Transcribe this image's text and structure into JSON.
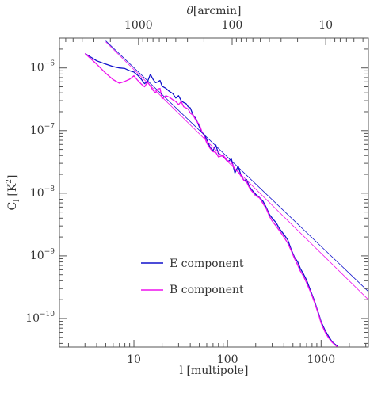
{
  "chart_data": {
    "type": "line",
    "xlabel": "l [multipole]",
    "ylabel_main": "C",
    "ylabel_sub": "l",
    "ylabel_unit_base": "[K",
    "ylabel_unit_exp": "2",
    "ylabel_unit_end": "]",
    "x2label_symbol": "θ",
    "x2label_text": "[arcmin]",
    "xscale": "log",
    "yscale": "log",
    "xlim": [
      1.6,
      3200
    ],
    "ylim": [
      3.5e-11,
      3e-06
    ],
    "x2scale": "log",
    "x2_ticks": [
      {
        "label": "1000",
        "l": 11.2
      },
      {
        "label": "100",
        "l": 112
      },
      {
        "label": "10",
        "l": 1120
      }
    ],
    "x_ticks": [
      {
        "label": "10",
        "value": 10
      },
      {
        "label": "100",
        "value": 100
      },
      {
        "label": "1000",
        "value": 1000
      }
    ],
    "y_ticks": [
      {
        "base": "10",
        "exp": "−6",
        "value": 1e-06
      },
      {
        "base": "10",
        "exp": "−7",
        "value": 1e-07
      },
      {
        "base": "10",
        "exp": "−8",
        "value": 1e-08
      },
      {
        "base": "10",
        "exp": "−9",
        "value": 1e-09
      },
      {
        "base": "10",
        "exp": "−10",
        "value": 1e-10
      }
    ],
    "legend": {
      "position": "lower-left",
      "items": [
        {
          "label": "E component",
          "color": "#1111cc"
        },
        {
          "label": "B component",
          "color": "#ee11ee"
        }
      ]
    },
    "series": [
      {
        "name": "E component",
        "color": "#1111cc",
        "x": [
          3,
          4,
          5,
          6,
          7,
          8,
          9,
          10,
          11,
          12,
          13,
          14,
          15,
          16,
          17,
          18,
          19,
          20,
          22,
          24,
          26,
          28,
          30,
          32,
          34,
          36,
          38,
          40,
          43,
          46,
          50,
          53,
          56,
          60,
          65,
          70,
          75,
          80,
          90,
          100,
          110,
          120,
          130,
          140,
          150,
          160,
          170,
          180,
          190,
          200,
          220,
          240,
          260,
          280,
          300,
          330,
          360,
          400,
          440,
          480,
          520,
          560,
          600,
          650,
          700,
          750,
          800,
          850,
          900,
          950,
          1000,
          1100,
          1200,
          1300,
          1400,
          1500
        ],
        "y": [
          1.7e-06,
          1.3e-06,
          1.15e-06,
          1.05e-06,
          1e-06,
          9.8e-07,
          9e-07,
          8.6e-07,
          7.6e-07,
          6.6e-07,
          5.6e-07,
          6.1e-07,
          7.9e-07,
          6.6e-07,
          5.8e-07,
          6e-07,
          6.3e-07,
          5.1e-07,
          4.7e-07,
          4.2e-07,
          3.9e-07,
          3.3e-07,
          3.6e-07,
          3e-07,
          2.8e-07,
          2.7e-07,
          2.4e-07,
          2.3e-07,
          1.75e-07,
          1.55e-07,
          1.15e-07,
          9.4e-08,
          8.8e-08,
          7.2e-08,
          5.4e-08,
          4.8e-08,
          5.9e-08,
          4.3e-08,
          3.9e-08,
          3.2e-08,
          3.5e-08,
          2.1e-08,
          2.7e-08,
          1.9e-08,
          1.6e-08,
          1.65e-08,
          1.3e-08,
          1.15e-08,
          1.05e-08,
          9.6e-09,
          8.5e-09,
          7.4e-09,
          5.9e-09,
          4.6e-09,
          4e-09,
          3.4e-09,
          2.7e-09,
          2.2e-09,
          1.8e-09,
          1.25e-09,
          9.5e-10,
          8.1e-10,
          6.3e-10,
          5.1e-10,
          4.1e-10,
          3.1e-10,
          2.4e-10,
          1.9e-10,
          1.45e-10,
          1.15e-10,
          8.9e-11,
          6.5e-11,
          5.2e-11,
          4.3e-11,
          3.9e-11,
          3.6e-11
        ]
      },
      {
        "name": "B component",
        "color": "#ee11ee",
        "x": [
          3,
          4,
          5,
          6,
          7,
          8,
          9,
          10,
          11,
          12,
          13,
          14,
          15,
          16,
          17,
          18,
          19,
          20,
          22,
          24,
          26,
          28,
          30,
          32,
          34,
          36,
          38,
          40,
          43,
          46,
          50,
          53,
          56,
          60,
          65,
          70,
          75,
          80,
          90,
          100,
          110,
          120,
          130,
          140,
          150,
          160,
          170,
          180,
          190,
          200,
          220,
          240,
          260,
          280,
          300,
          330,
          360,
          400,
          440,
          480,
          520,
          560,
          600,
          650,
          700,
          750,
          800,
          850,
          900,
          950,
          1000,
          1100,
          1200,
          1300,
          1400,
          1500
        ],
        "y": [
          1.7e-06,
          1.15e-06,
          8.2e-07,
          6.5e-07,
          5.7e-07,
          6.1e-07,
          6.6e-07,
          7.5e-07,
          6.3e-07,
          5.5e-07,
          5e-07,
          6e-07,
          5.1e-07,
          4.4e-07,
          4e-07,
          4.6e-07,
          4.7e-07,
          3.2e-07,
          3.6e-07,
          3.4e-07,
          3.1e-07,
          2.9e-07,
          2.6e-07,
          2.9e-07,
          2.4e-07,
          2.3e-07,
          2.2e-07,
          1.9e-07,
          1.75e-07,
          1.45e-07,
          1.25e-07,
          9.8e-08,
          8.4e-08,
          6.3e-08,
          5.2e-08,
          4.6e-08,
          4.5e-08,
          3.8e-08,
          4e-08,
          3.3e-08,
          3.1e-08,
          2.4e-08,
          2.2e-08,
          1.85e-08,
          1.6e-08,
          1.5e-08,
          1.25e-08,
          1.1e-08,
          1e-08,
          9.1e-09,
          8.4e-09,
          6.8e-09,
          5.6e-09,
          4.3e-09,
          3.6e-09,
          3e-09,
          2.5e-09,
          2e-09,
          1.6e-09,
          1.2e-09,
          9e-10,
          7.2e-10,
          5.7e-10,
          4.7e-10,
          3.7e-10,
          2.9e-10,
          2.3e-10,
          1.8e-10,
          1.4e-10,
          1.1e-10,
          8.4e-11,
          6.1e-11,
          4.9e-11,
          4.2e-11,
          3.8e-11,
          3.5e-11
        ]
      },
      {
        "color": "#1111cc",
        "style": "thin",
        "x": [
          5,
          3200
        ],
        "y": [
          2.7e-06,
          2.7e-10
        ]
      },
      {
        "color": "#ee11ee",
        "style": "thin",
        "x": [
          5,
          3200
        ],
        "y": [
          2.6e-06,
          2e-10
        ]
      }
    ]
  }
}
